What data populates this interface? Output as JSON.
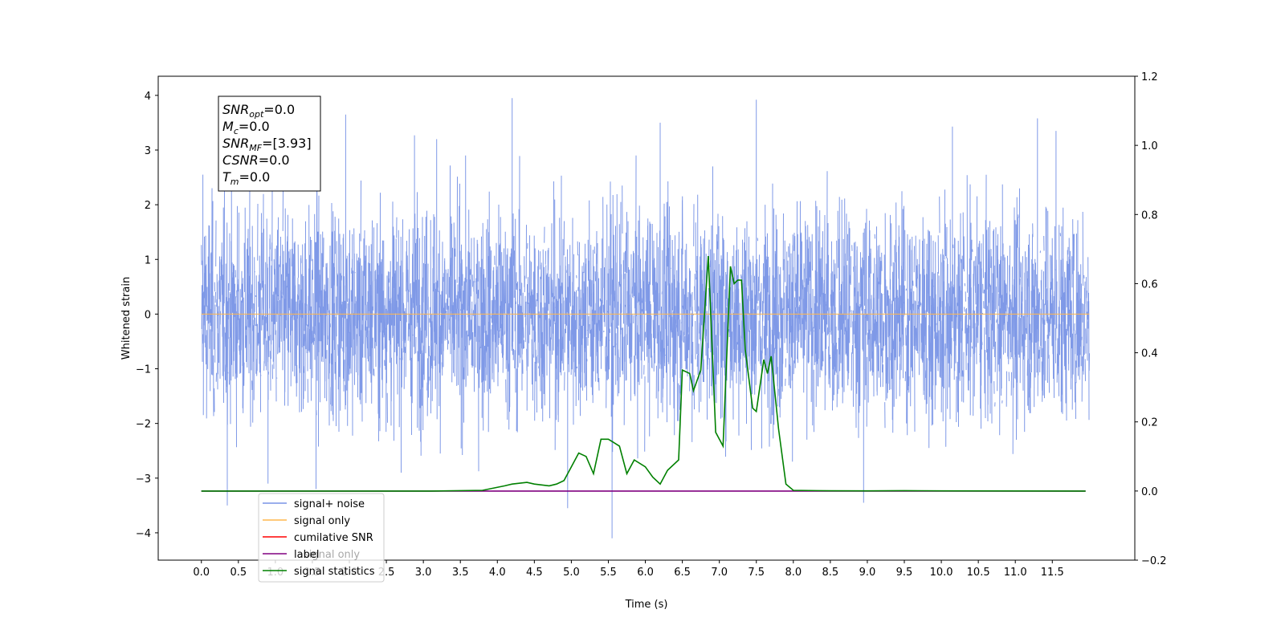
{
  "chart_data": {
    "type": "line",
    "xlabel": "Time (s)",
    "ylabel_left": "Whitened strain",
    "ylabel_right": "",
    "xlim": [
      -0.5833,
      12.615
    ],
    "ylim_left": [
      -4.5,
      4.35
    ],
    "ylim_right": [
      -0.2,
      1.2
    ],
    "x_ticks": [
      "0.0",
      "0.5",
      "1.0",
      "1.5",
      "2.0",
      "2.5",
      "3.0",
      "3.5",
      "4.0",
      "4.5",
      "5.0",
      "5.5",
      "6.0",
      "6.5",
      "7.0",
      "7.5",
      "8.0",
      "8.5",
      "9.0",
      "9.5",
      "10.0",
      "10.5",
      "11.0",
      "11.5"
    ],
    "y_ticks_left": [
      "−4",
      "−3",
      "−2",
      "−1",
      "0",
      "1",
      "2",
      "3",
      "4"
    ],
    "y_ticks_right": [
      "−0.2",
      "0.0",
      "0.2",
      "0.4",
      "0.6",
      "0.8",
      "1.0",
      "1.2"
    ],
    "grid": false,
    "legend_placement": "lower-left",
    "series": [
      {
        "name": "signal+ noise",
        "color": "#7893e6",
        "axis": "left",
        "style": "noise",
        "x_range": [
          0.0,
          12.0
        ],
        "envelope": [
          -2.8,
          2.8
        ],
        "spikes": [
          [
            0.35,
            -3.5
          ],
          [
            0.02,
            2.55
          ],
          [
            1.95,
            3.65
          ],
          [
            4.2,
            3.95
          ],
          [
            4.95,
            -3.55
          ],
          [
            5.55,
            -4.1
          ],
          [
            7.5,
            3.92
          ],
          [
            8.95,
            -3.45
          ],
          [
            10.15,
            3.43
          ],
          [
            11.3,
            3.58
          ],
          [
            11.55,
            3.35
          ],
          [
            6.2,
            3.5
          ],
          [
            3.18,
            3.2
          ],
          [
            2.88,
            3.27
          ],
          [
            1.55,
            -3.2
          ],
          [
            0.9,
            -3.1
          ]
        ]
      },
      {
        "name": "signal only",
        "color": "#ffb74d",
        "axis": "left",
        "x": [
          0.0,
          12.0
        ],
        "values": [
          0.0,
          0.0
        ]
      },
      {
        "name": "cumilative SNR",
        "color": "#ff0000",
        "axis": "right",
        "x": [],
        "values": []
      },
      {
        "name": "label",
        "color": "#800080",
        "axis": "right",
        "x": [
          0.0,
          11.95
        ],
        "values": [
          0.0,
          0.0
        ]
      },
      {
        "name": "signal statistics",
        "color": "#008000",
        "axis": "right",
        "x": [
          0.0,
          2.9,
          3.1,
          3.8,
          4.1,
          4.2,
          4.4,
          4.5,
          4.7,
          4.8,
          4.9,
          5.0,
          5.1,
          5.2,
          5.3,
          5.4,
          5.5,
          5.65,
          5.75,
          5.85,
          6.0,
          6.1,
          6.2,
          6.3,
          6.45,
          6.5,
          6.6,
          6.65,
          6.75,
          6.85,
          6.95,
          7.05,
          7.15,
          7.2,
          7.25,
          7.3,
          7.35,
          7.45,
          7.5,
          7.6,
          7.65,
          7.7,
          7.8,
          7.9,
          8.0,
          8.5,
          9.0,
          9.5,
          10.0,
          11.95
        ],
        "values": [
          0.0,
          0.0,
          0.0,
          0.002,
          0.015,
          0.02,
          0.025,
          0.02,
          0.015,
          0.02,
          0.03,
          0.07,
          0.11,
          0.1,
          0.05,
          0.15,
          0.15,
          0.13,
          0.05,
          0.09,
          0.07,
          0.04,
          0.02,
          0.06,
          0.09,
          0.35,
          0.34,
          0.29,
          0.35,
          0.68,
          0.17,
          0.13,
          0.65,
          0.6,
          0.61,
          0.61,
          0.41,
          0.24,
          0.23,
          0.38,
          0.34,
          0.39,
          0.18,
          0.02,
          0.002,
          0.0005,
          0.0004,
          0.001,
          0.0003,
          0.0
        ]
      }
    ],
    "annotation_box": {
      "lines": [
        {
          "sym": "SNR",
          "sub": "opt",
          "value": "=0.0"
        },
        {
          "sym": "M",
          "sub": "c",
          "value": "=0.0"
        },
        {
          "sym": "SNR",
          "sub": "MF",
          "value": "=[3.93]"
        },
        {
          "sym": "CSNR",
          "sub": "",
          "value": "=0.0"
        },
        {
          "sym": "T",
          "sub": "m",
          "value": "=0.0"
        }
      ]
    },
    "legend_ghost_text": "signal only"
  }
}
